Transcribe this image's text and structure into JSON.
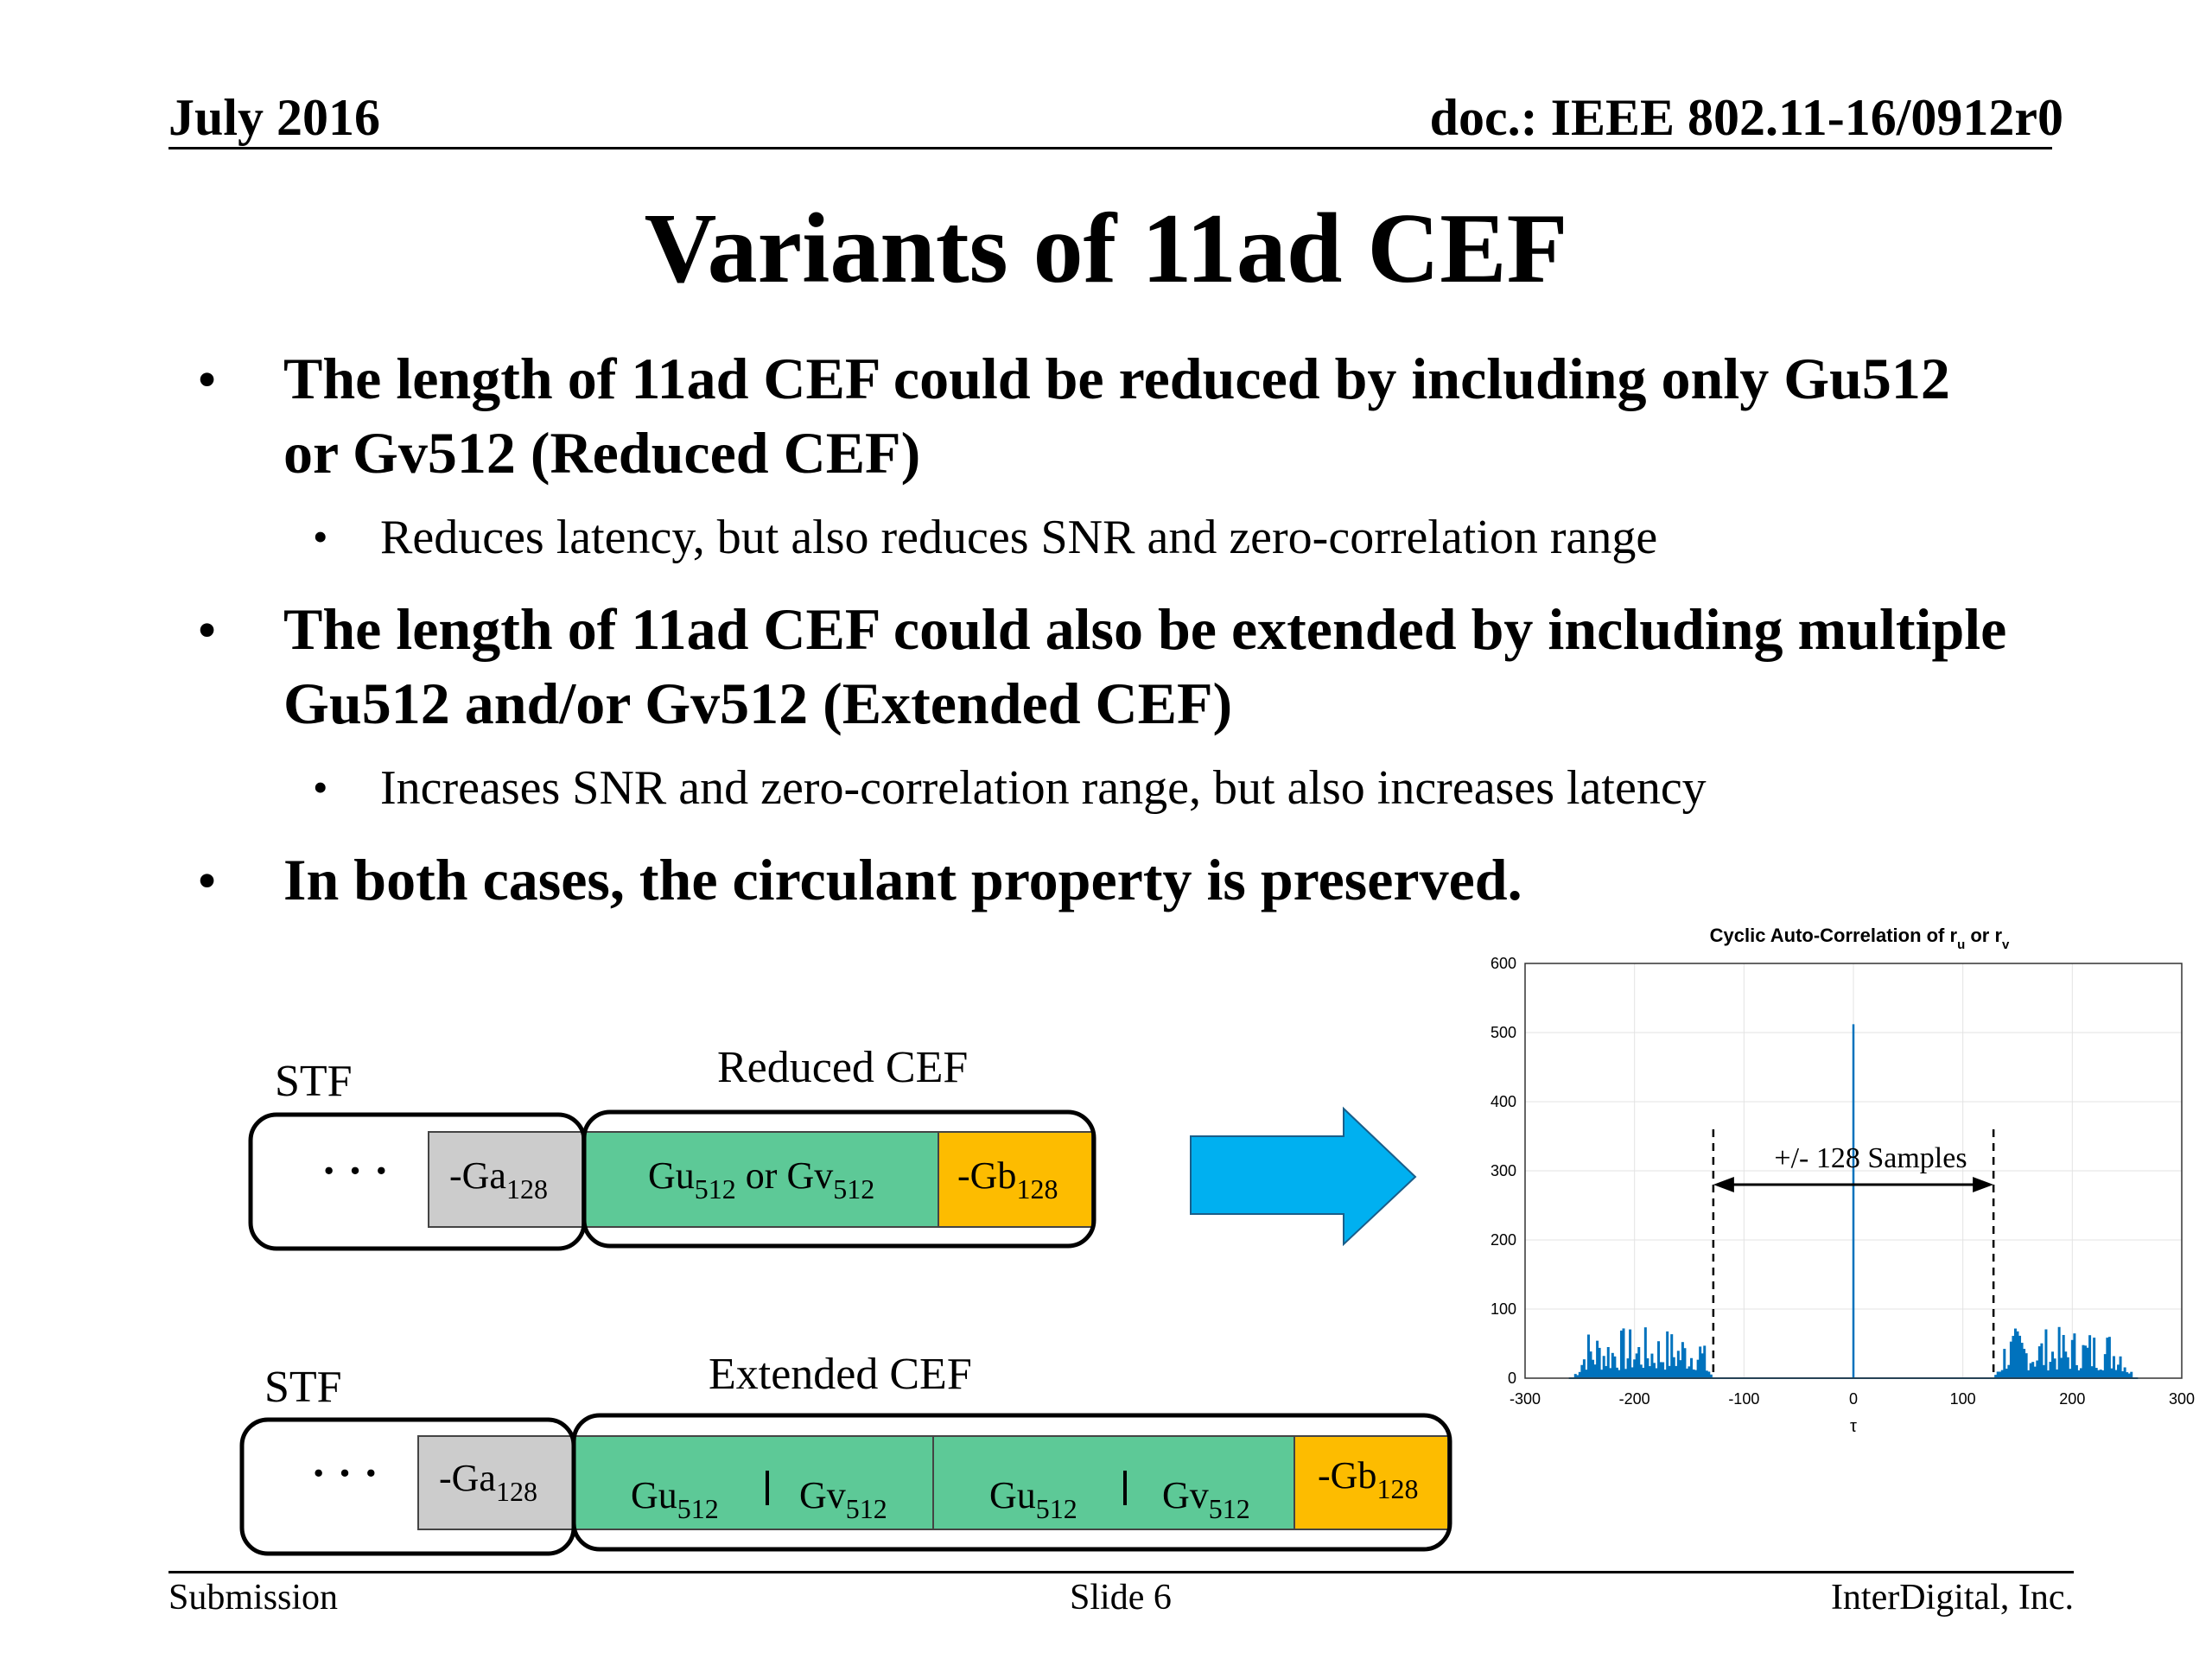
{
  "header": {
    "date": "July 2016",
    "doc": "doc.: IEEE 802.11-16/0912r0"
  },
  "title": "Variants of 11ad CEF",
  "bullets": [
    {
      "line1": "The length of 11ad CEF could be reduced by including only Gu512",
      "line2": "or Gv512 (Reduced CEF)",
      "sub": "Reduces latency, but also reduces SNR and zero-correlation range"
    },
    {
      "line1": "The length of 11ad CEF could also be extended by including multiple",
      "line2": "Gu512 and/or Gv512 (Extended CEF)",
      "sub": "Increases SNR and zero-correlation range, but also increases latency"
    },
    {
      "line1": "In both cases, the circulant property is preserved."
    }
  ],
  "bullet_glyph": "•",
  "diagram": {
    "reduced": {
      "stf_label": "STF",
      "cef_label": "Reduced CEF",
      "dots": "· · ·",
      "ga": {
        "base": "-Ga",
        "sub": "128"
      },
      "gu_or_gv": {
        "gu": "Gu",
        "gv": "Gv",
        "sub": "512",
        "or": " or "
      },
      "gb": {
        "base": "-Gb",
        "sub": "128"
      }
    },
    "extended": {
      "stf_label": "STF",
      "cef_label": "Extended CEF",
      "dots": "· · ·",
      "ga": {
        "base": "-Ga",
        "sub": "128"
      },
      "gu": "Gu",
      "gv": "Gv",
      "sub": "512",
      "gb": {
        "base": "-Gb",
        "sub": "128"
      }
    },
    "colors": {
      "green": "#5dc997",
      "orange": "#fdbc00",
      "gray": "#cccccc",
      "arrow": "#00b0f0"
    }
  },
  "chart_data": {
    "type": "line",
    "title": "Cyclic Auto-Correlation of r",
    "title_sub_u": "u",
    "title_or": " or r",
    "title_sub_v": "v",
    "xlabel": "τ",
    "ylabel": "",
    "xlim": [
      -300,
      300
    ],
    "ylim": [
      0,
      600
    ],
    "xticks": [
      -300,
      -200,
      -100,
      0,
      100,
      200,
      300
    ],
    "yticks": [
      0,
      100,
      200,
      300,
      400,
      500,
      600
    ],
    "grid": true,
    "line_color": "#0072bd",
    "peak": {
      "x": 0,
      "y": 512
    },
    "sidelobe_regions": [
      [
        -256,
        -128
      ],
      [
        128,
        256
      ]
    ],
    "sidelobe_max": 75,
    "zero_correlation_range": [
      -128,
      128
    ],
    "annotation": "+/- 128 Samples"
  },
  "footer": {
    "left": "Submission",
    "center": "Slide 6",
    "right": "InterDigital, Inc."
  }
}
